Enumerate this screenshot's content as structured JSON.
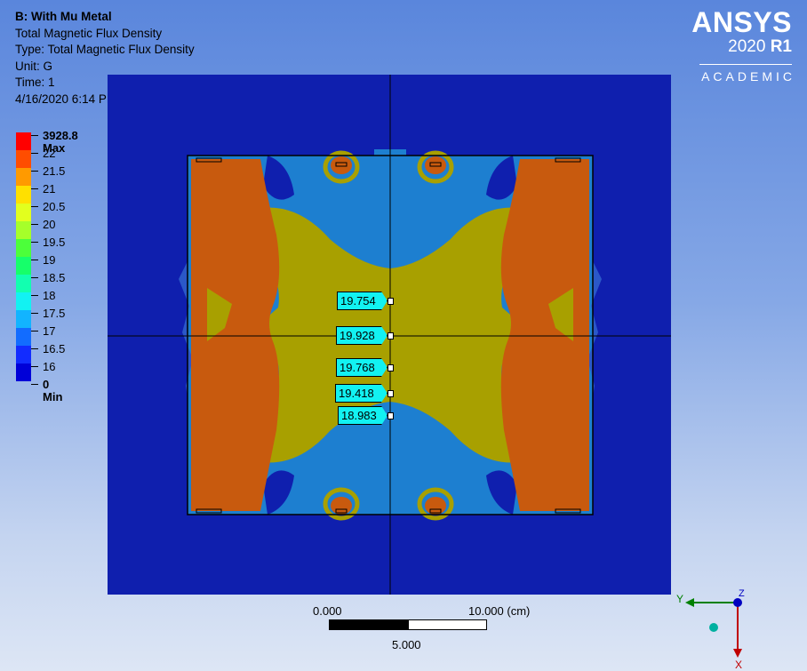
{
  "header": {
    "title": "B: With Mu Metal",
    "line2": "Total Magnetic Flux Density",
    "line3": "Type: Total Magnetic Flux Density",
    "line4": "Unit: G",
    "line5": "Time: 1",
    "line6": "4/16/2020 6:14 PM"
  },
  "logo": {
    "brand": "ANSYS",
    "version_year": "2020",
    "version_release": "R1",
    "edition": "ACADEMIC"
  },
  "legend": {
    "items": [
      {
        "label": "3928.8 Max",
        "color": "#ff0000",
        "bold": true
      },
      {
        "label": "22",
        "color": "#ff4d00",
        "bold": false
      },
      {
        "label": "21.5",
        "color": "#ff9a00",
        "bold": false
      },
      {
        "label": "21",
        "color": "#ffe000",
        "bold": false
      },
      {
        "label": "20.5",
        "color": "#e2ff1e",
        "bold": false
      },
      {
        "label": "20",
        "color": "#a6ff2a",
        "bold": false
      },
      {
        "label": "19.5",
        "color": "#4cff3a",
        "bold": false
      },
      {
        "label": "19",
        "color": "#16ff6a",
        "bold": false
      },
      {
        "label": "18.5",
        "color": "#12ffb0",
        "bold": false
      },
      {
        "label": "18",
        "color": "#12f2f2",
        "bold": false
      },
      {
        "label": "17.5",
        "color": "#12b4ff",
        "bold": false
      },
      {
        "label": "17",
        "color": "#126cff",
        "bold": false
      },
      {
        "label": "16.5",
        "color": "#122cff",
        "bold": false
      },
      {
        "label": "16",
        "color": "#0000d8",
        "bold": false
      },
      {
        "label": "0 Min",
        "color": "#0000d8",
        "bold": true
      }
    ]
  },
  "contour_colors": {
    "background_dark_blue": "#0f1fae",
    "blue": "#1d7fd0",
    "mid_blue": "#2b58c8",
    "olive": "#a8a000",
    "orange": "#c85a0e",
    "green_tint": "#3aa64a"
  },
  "probes": [
    {
      "label": "19.754"
    },
    {
      "label": "19.928"
    },
    {
      "label": "19.768"
    },
    {
      "label": "19.418"
    },
    {
      "label": "18.983"
    }
  ],
  "scale": {
    "left_label": "0.000",
    "right_label": "10.000 (cm)",
    "mid_label": "5.000"
  },
  "triad": {
    "y_label": "Y",
    "z_label": "Z",
    "x_label": "X",
    "y_color": "#008000",
    "x_color": "#c00000",
    "z_color": "#0000c0"
  }
}
